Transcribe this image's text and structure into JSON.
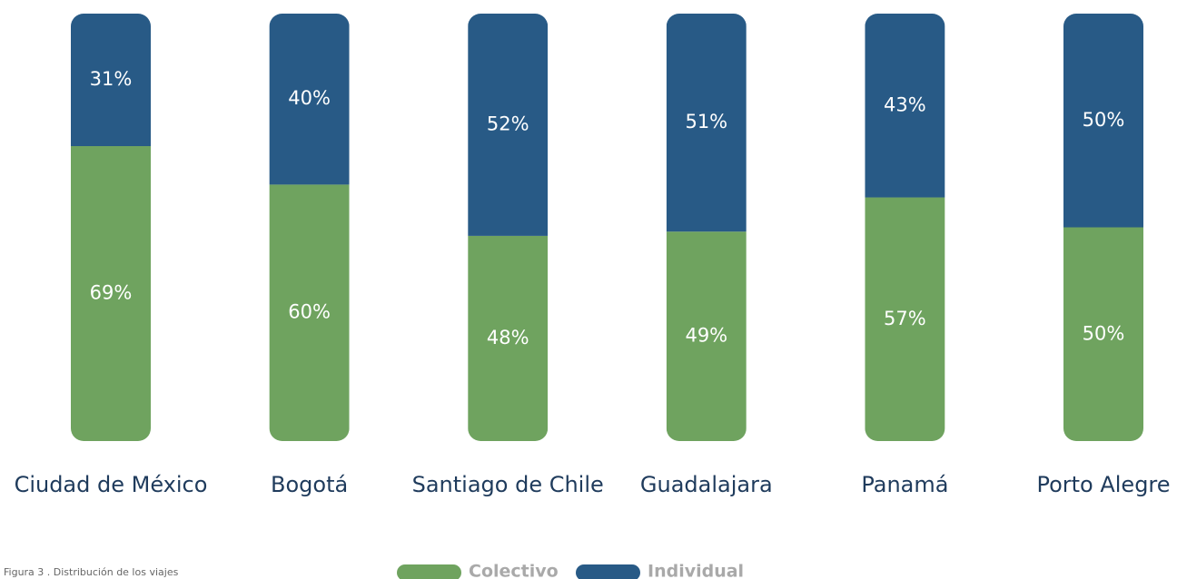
{
  "chart_data": {
    "type": "bar",
    "stacked": true,
    "caption": "Figura 3 . Distribución de los viajes",
    "categories": [
      "Ciudad de México",
      "Bogotá",
      "Santiago de Chile",
      "Guadalajara",
      "Panamá",
      "Porto Alegre"
    ],
    "series": [
      {
        "name": "Colectivo",
        "color": "#6fa35f",
        "values": [
          69,
          60,
          48,
          49,
          57,
          50
        ],
        "value_labels": [
          "69%",
          "60%",
          "48%",
          "49%",
          "57%",
          "50%"
        ]
      },
      {
        "name": "Individual",
        "color": "#285a86",
        "values": [
          31,
          40,
          52,
          51,
          43,
          50
        ],
        "value_labels": [
          "31%",
          "40%",
          "52%",
          "51%",
          "43%",
          "50%"
        ]
      }
    ]
  }
}
